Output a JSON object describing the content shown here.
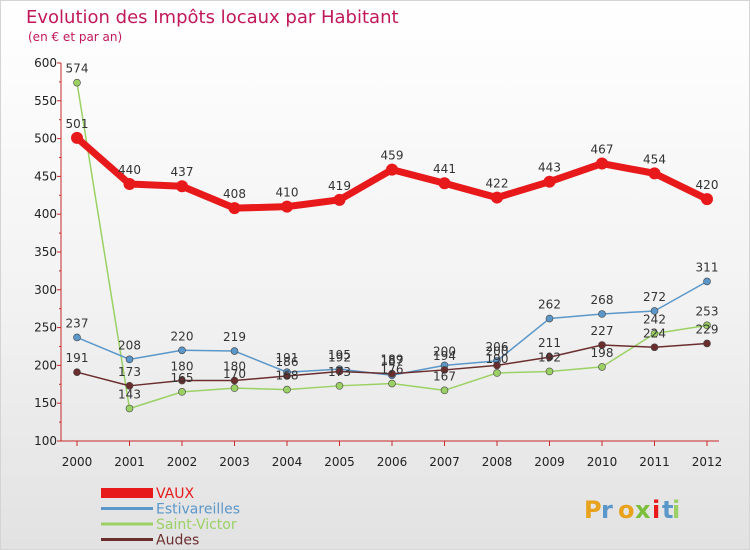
{
  "chart_data": {
    "type": "line",
    "title": "Evolution des Impôts locaux par Habitant",
    "subtitle": "(en € et par an)",
    "xlabel": "",
    "ylabel": "",
    "categories": [
      "2000",
      "2001",
      "2002",
      "2003",
      "2004",
      "2005",
      "2006",
      "2007",
      "2008",
      "2009",
      "2010",
      "2011",
      "2012"
    ],
    "ylim": [
      100,
      600
    ],
    "yticks": [
      100,
      150,
      200,
      250,
      300,
      350,
      400,
      450,
      500,
      550,
      600
    ],
    "grid": false,
    "legend_position": "bottom-left",
    "series": [
      {
        "name": "VAUX",
        "color": "#e8191b",
        "values": [
          501,
          440,
          437,
          408,
          410,
          419,
          459,
          441,
          422,
          443,
          467,
          454,
          420
        ]
      },
      {
        "name": "Estivareilles",
        "color": "#5b97c9",
        "values": [
          237,
          208,
          220,
          219,
          191,
          195,
          187,
          200,
          206,
          262,
          268,
          272,
          311
        ]
      },
      {
        "name": "Saint-Victor",
        "color": "#9bd164",
        "values": [
          574,
          143,
          165,
          170,
          168,
          173,
          176,
          167,
          190,
          192,
          198,
          242,
          253
        ]
      },
      {
        "name": "Audes",
        "color": "#6b2e2e",
        "values": [
          191,
          173,
          180,
          180,
          186,
          192,
          189,
          194,
          200,
          211,
          227,
          224,
          229
        ]
      }
    ]
  },
  "brand": {
    "letters": [
      "P",
      "r",
      "o",
      "x",
      "i",
      "t",
      "i"
    ]
  }
}
